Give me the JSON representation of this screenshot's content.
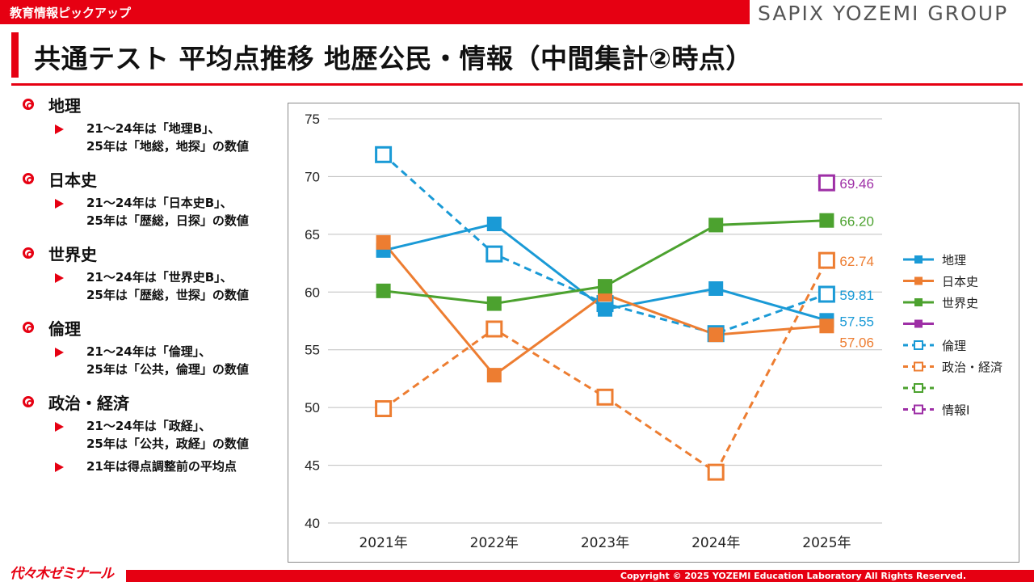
{
  "header": {
    "category_label": "教育情報ピックアップ",
    "brand": "SAPIX YOZEMI GROUP",
    "title": "共通テスト 平均点推移 地歴公民・情報（中間集計②時点）"
  },
  "notes": [
    {
      "title": "地理",
      "lines": [
        "21～24年は「地理B」、\n25年は「地総，地探」の数値"
      ]
    },
    {
      "title": "日本史",
      "lines": [
        "21～24年は「日本史B」、\n25年は「歴総，日探」の数値"
      ]
    },
    {
      "title": "世界史",
      "lines": [
        "21～24年は「世界史B」、\n25年は「歴総，世探」の数値"
      ]
    },
    {
      "title": "倫理",
      "lines": [
        "21～24年は「倫理」、\n25年は「公共，倫理」の数値"
      ]
    },
    {
      "title": "政治・経済",
      "lines": [
        "21～24年は「政経」、\n25年は「公共，政経」の数値",
        "21年は得点調整前の平均点"
      ]
    }
  ],
  "chart_data": {
    "type": "line",
    "categories": [
      "2021年",
      "2022年",
      "2023年",
      "2024年",
      "2025年"
    ],
    "ylim": [
      40,
      75
    ],
    "yticks": [
      40,
      45,
      50,
      55,
      60,
      65,
      70,
      75
    ],
    "grid": true,
    "legend_position": "right",
    "series": [
      {
        "name": "地理",
        "color": "#1a9ad6",
        "dashed": false,
        "marker": "filled-square",
        "values": [
          63.6,
          65.9,
          58.5,
          60.3,
          57.55
        ],
        "end_label": "57.55"
      },
      {
        "name": "日本史",
        "color": "#ed7d31",
        "dashed": false,
        "marker": "filled-square",
        "values": [
          64.3,
          52.8,
          59.8,
          56.3,
          57.06
        ],
        "end_label": "57.06"
      },
      {
        "name": "世界史",
        "color": "#4ca22f",
        "dashed": false,
        "marker": "filled-square",
        "values": [
          60.1,
          59.0,
          60.5,
          65.8,
          66.2
        ],
        "end_label": "66.20"
      },
      {
        "name": "",
        "color": "#9e2fa6",
        "dashed": false,
        "marker": "filled-square",
        "values": [
          null,
          null,
          null,
          null,
          null
        ],
        "end_label": ""
      },
      {
        "name": "倫理",
        "color": "#1a9ad6",
        "dashed": true,
        "marker": "open-square",
        "values": [
          71.9,
          63.3,
          59.0,
          56.4,
          59.81
        ],
        "end_label": "59.81"
      },
      {
        "name": "政治・経済",
        "color": "#ed7d31",
        "dashed": true,
        "marker": "open-square",
        "values": [
          49.9,
          56.8,
          50.9,
          44.4,
          62.74
        ],
        "end_label": "62.74"
      },
      {
        "name": "",
        "color": "#4ca22f",
        "dashed": true,
        "marker": "open-square",
        "values": [
          null,
          null,
          null,
          null,
          null
        ],
        "end_label": ""
      },
      {
        "name": "情報Ⅰ",
        "color": "#9e2fa6",
        "dashed": true,
        "marker": "open-square",
        "values": [
          null,
          null,
          null,
          null,
          69.46
        ],
        "end_label": "69.46"
      }
    ]
  },
  "footer": {
    "logo": "代々木ゼミナール",
    "copyright": "Copyright © 2025 YOZEMI Education Laboratory All Rights Reserved."
  }
}
